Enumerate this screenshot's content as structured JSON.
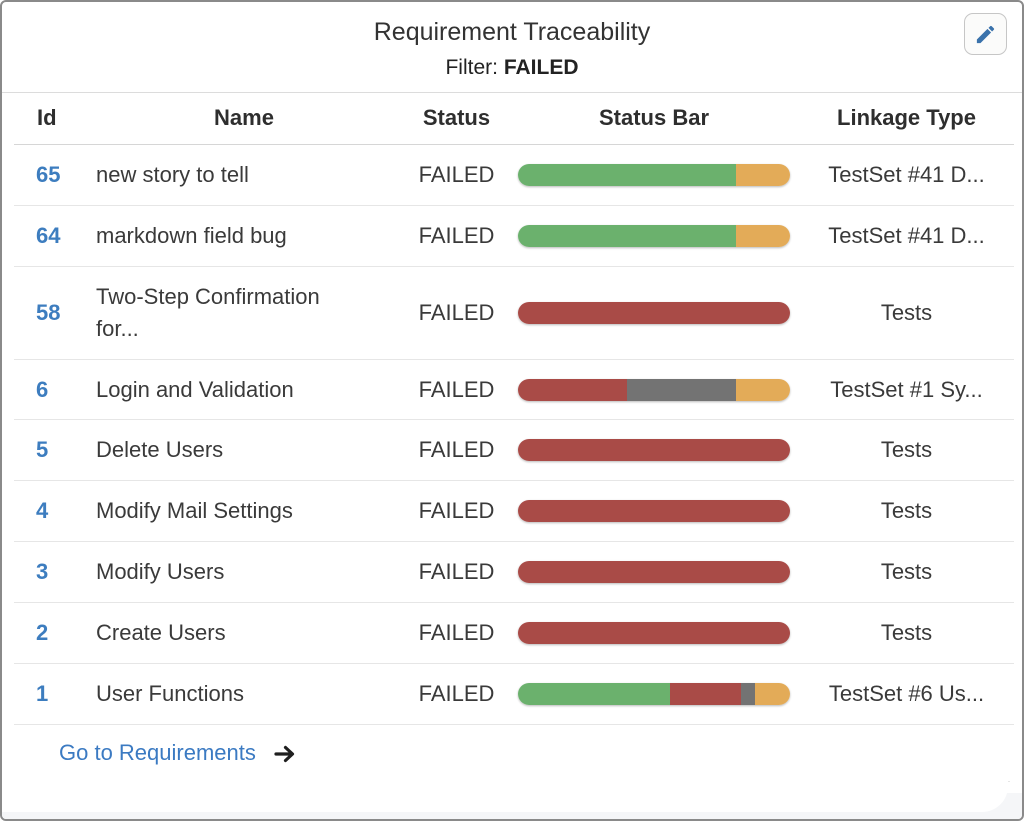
{
  "header": {
    "title": "Requirement Traceability",
    "filter_label": "Filter:",
    "filter_value": "FAILED"
  },
  "table": {
    "columns": [
      "Id",
      "Name",
      "Status",
      "Status Bar",
      "Linkage Type"
    ],
    "rows": [
      {
        "id": "65",
        "name": "new story to tell",
        "status": "FAILED",
        "bar": [
          {
            "color": "green",
            "pct": 80
          },
          {
            "color": "orange",
            "pct": 20
          }
        ],
        "linkage": "TestSet #41 D..."
      },
      {
        "id": "64",
        "name": "markdown field bug",
        "status": "FAILED",
        "bar": [
          {
            "color": "green",
            "pct": 80
          },
          {
            "color": "orange",
            "pct": 20
          }
        ],
        "linkage": "TestSet #41 D..."
      },
      {
        "id": "58",
        "name": "Two-Step Confirmation for...",
        "status": "FAILED",
        "bar": [
          {
            "color": "red",
            "pct": 100
          }
        ],
        "linkage": "Tests"
      },
      {
        "id": "6",
        "name": "Login and Validation",
        "status": "FAILED",
        "bar": [
          {
            "color": "red",
            "pct": 40
          },
          {
            "color": "gray",
            "pct": 40
          },
          {
            "color": "orange",
            "pct": 20
          }
        ],
        "linkage": "TestSet #1 Sy..."
      },
      {
        "id": "5",
        "name": "Delete Users",
        "status": "FAILED",
        "bar": [
          {
            "color": "red",
            "pct": 100
          }
        ],
        "linkage": "Tests"
      },
      {
        "id": "4",
        "name": "Modify Mail Settings",
        "status": "FAILED",
        "bar": [
          {
            "color": "red",
            "pct": 100
          }
        ],
        "linkage": "Tests"
      },
      {
        "id": "3",
        "name": "Modify Users",
        "status": "FAILED",
        "bar": [
          {
            "color": "red",
            "pct": 100
          }
        ],
        "linkage": "Tests"
      },
      {
        "id": "2",
        "name": "Create Users",
        "status": "FAILED",
        "bar": [
          {
            "color": "red",
            "pct": 100
          }
        ],
        "linkage": "Tests"
      },
      {
        "id": "1",
        "name": "User Functions",
        "status": "FAILED",
        "bar": [
          {
            "color": "green",
            "pct": 56
          },
          {
            "color": "red",
            "pct": 26
          },
          {
            "color": "gray",
            "pct": 5
          },
          {
            "color": "orange",
            "pct": 13
          }
        ],
        "linkage": "TestSet #6 Us..."
      }
    ]
  },
  "footer": {
    "link_label": "Go to Requirements"
  },
  "colors": {
    "green": "#6bb16d",
    "red": "#a94b47",
    "gray": "#737373",
    "orange": "#e3ab58",
    "id_blue": "#3d7dbf",
    "link_blue": "#3b7ac2",
    "pencil_blue": "#3a72ab"
  }
}
